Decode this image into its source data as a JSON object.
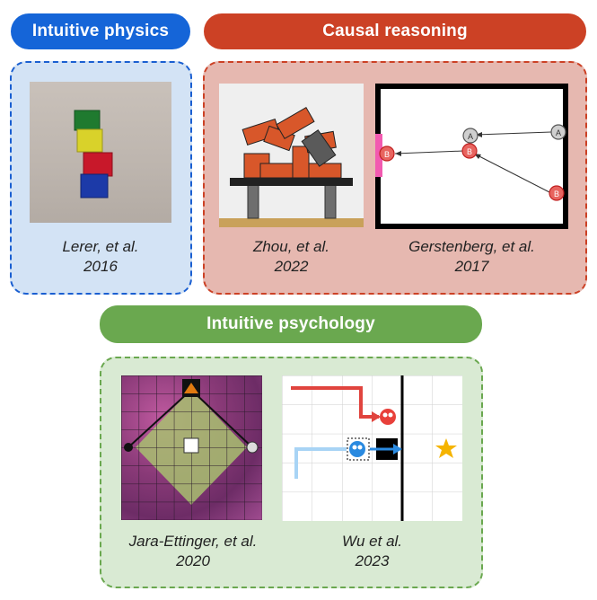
{
  "sections": {
    "physics": {
      "title": "Intuitive physics",
      "color": "#1565d8"
    },
    "causal": {
      "title": "Causal reasoning",
      "color": "#cc4125"
    },
    "psychology": {
      "title": "Intuitive psychology",
      "color": "#6aa84f"
    }
  },
  "figures": {
    "lerer": {
      "author": "Lerer, et al.",
      "year": "2016"
    },
    "zhou": {
      "author": "Zhou, et al.",
      "year": "2022"
    },
    "gerstenberg": {
      "author": "Gerstenberg, et al.",
      "year": "2017",
      "balls": [
        "A",
        "A",
        "B",
        "B",
        "B"
      ]
    },
    "jara": {
      "author": "Jara-Ettinger, et al.",
      "year": "2020"
    },
    "wu": {
      "author": "Wu et al.",
      "year": "2023"
    }
  }
}
